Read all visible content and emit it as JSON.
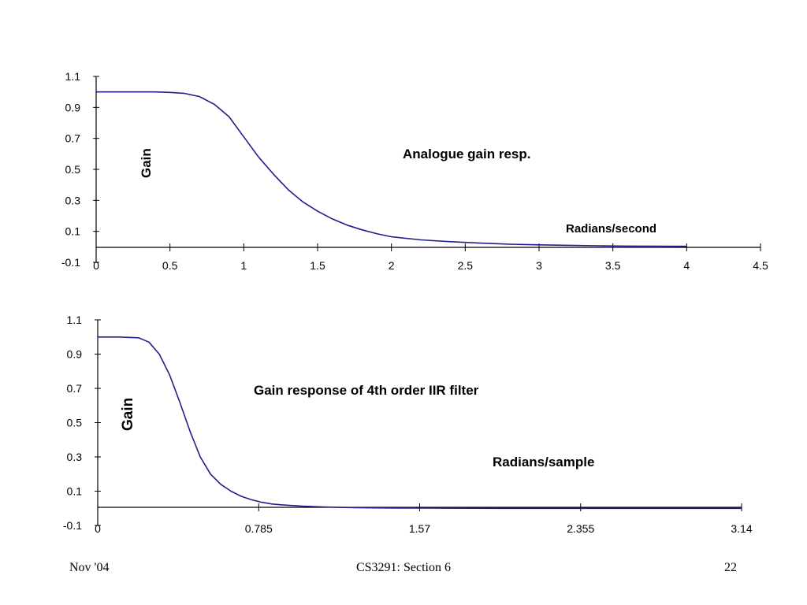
{
  "footer": {
    "left": "Nov '04",
    "center": "CS3291: Section 6",
    "right": "22"
  },
  "colors": {
    "curve": "#1f1f8a",
    "axis": "#000000"
  },
  "chart_data": [
    {
      "type": "line",
      "title": "",
      "xlabel": "Radians/second",
      "ylabel": "Gain",
      "annotations": [
        "Analogue gain resp."
      ],
      "xlim": [
        0,
        4.5
      ],
      "ylim": [
        -0.1,
        1.1
      ],
      "x_ticks": [
        "0",
        "0.5",
        "1",
        "1.5",
        "2",
        "2.5",
        "3",
        "3.5",
        "4",
        "4.5"
      ],
      "y_ticks": [
        "1.1",
        "0.9",
        "0.7",
        "0.5",
        "0.3",
        "0.1",
        "-0.1"
      ],
      "grid": false,
      "series": [
        {
          "x": [
            0,
            0.2,
            0.4,
            0.5,
            0.6,
            0.7,
            0.8,
            0.9,
            1.0,
            1.1,
            1.2,
            1.3,
            1.4,
            1.5,
            1.6,
            1.7,
            1.8,
            1.9,
            2.0,
            2.2,
            2.4,
            2.6,
            2.8,
            3.0,
            3.2,
            3.4,
            3.6,
            3.8,
            4.0
          ],
          "y": [
            1.0,
            1.0,
            1.0,
            0.997,
            0.99,
            0.97,
            0.92,
            0.84,
            0.71,
            0.58,
            0.47,
            0.37,
            0.29,
            0.23,
            0.18,
            0.14,
            0.11,
            0.085,
            0.065,
            0.045,
            0.033,
            0.024,
            0.017,
            0.013,
            0.01,
            0.007,
            0.005,
            0.004,
            0.003
          ]
        }
      ]
    },
    {
      "type": "line",
      "title": "",
      "xlabel": "Radians/sample",
      "ylabel": "Gain",
      "annotations": [
        "Gain response of 4th order IIR filter"
      ],
      "xlim": [
        0,
        3.14
      ],
      "ylim": [
        -0.1,
        1.1
      ],
      "x_ticks": [
        "0",
        "0.785",
        "1.57",
        "2.355",
        "3.14"
      ],
      "y_ticks": [
        "1.1",
        "0.9",
        "0.7",
        "0.5",
        "0.3",
        "0.1",
        "-0.1"
      ],
      "grid": false,
      "series": [
        {
          "x": [
            0,
            0.1,
            0.2,
            0.25,
            0.3,
            0.35,
            0.4,
            0.45,
            0.5,
            0.55,
            0.6,
            0.65,
            0.7,
            0.75,
            0.8,
            0.85,
            0.9,
            1.0,
            1.1,
            1.2,
            1.3,
            1.4,
            1.57,
            2.0,
            2.5,
            3.14
          ],
          "y": [
            1.0,
            1.0,
            0.995,
            0.97,
            0.9,
            0.78,
            0.62,
            0.45,
            0.3,
            0.2,
            0.14,
            0.1,
            0.07,
            0.05,
            0.035,
            0.025,
            0.02,
            0.012,
            0.008,
            0.005,
            0.003,
            0.002,
            0.001,
            0.0,
            0.0,
            0.0
          ]
        }
      ]
    }
  ]
}
